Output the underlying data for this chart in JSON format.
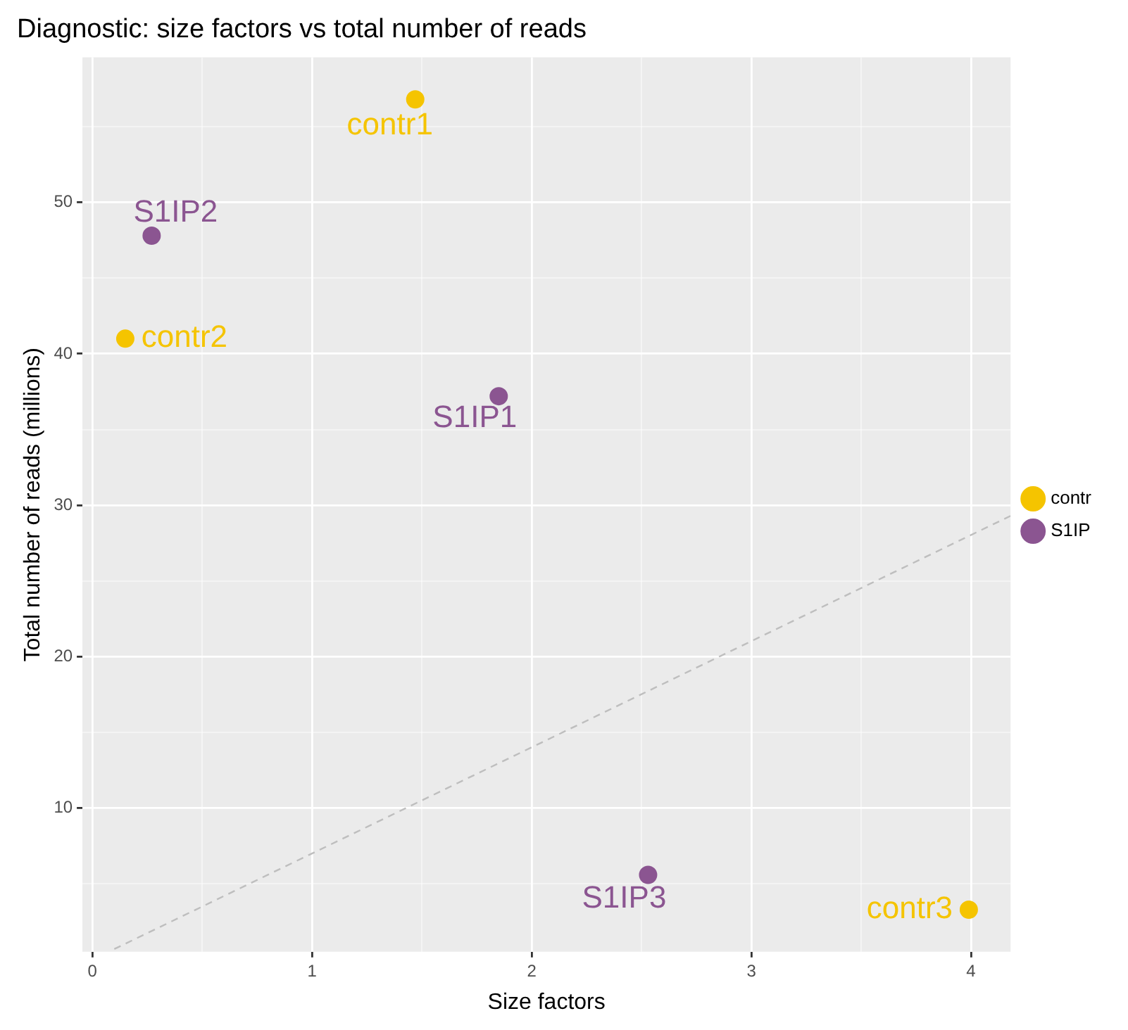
{
  "chart_data": {
    "type": "scatter",
    "title": "Diagnostic: size factors vs total number of reads",
    "xlabel": "Size factors",
    "ylabel": "Total number of reads (millions)",
    "series": [
      {
        "name": "contr",
        "color": "#f5c400",
        "x": [
          1.47,
          0.15,
          3.99
        ],
        "values": [
          56.8,
          41.0,
          3.3
        ]
      },
      {
        "name": "S1IP",
        "color": "#8b5591",
        "x": [
          0.27,
          1.85,
          2.53
        ],
        "values": [
          47.8,
          37.2,
          5.6
        ]
      },
      {
        "type": "line",
        "color": "#bebebe",
        "line_style": "dashed",
        "marker": "none",
        "x": [
          0.1,
          4.18
        ],
        "values": [
          0.7,
          29.3
        ]
      }
    ],
    "annotations": [
      {
        "text": "contr1",
        "x": 1.47,
        "y": 56.8
      },
      {
        "text": "S1IP2",
        "x": 0.27,
        "y": 47.8
      },
      {
        "text": "contr2",
        "x": 0.15,
        "y": 41.0
      },
      {
        "text": "S1IP1",
        "x": 1.85,
        "y": 37.2
      },
      {
        "text": "S1IP3",
        "x": 2.53,
        "y": 5.6
      },
      {
        "text": "contr3",
        "x": 3.99,
        "y": 3.3
      }
    ],
    "xlim": [
      -0.045,
      4.18
    ],
    "ylim": [
      0.52,
      59.57
    ],
    "xticks": [
      0,
      {
        "value": 0.5,
        "label": null
      },
      1,
      {
        "value": 1.5,
        "label": null
      },
      2,
      {
        "value": 2.5,
        "label": null
      },
      3,
      {
        "value": 3.5,
        "label": null
      },
      4
    ],
    "yticks": [
      {
        "value": 5,
        "label": null
      },
      10,
      {
        "value": 15,
        "label": null
      },
      20,
      {
        "value": 25,
        "label": null
      },
      30,
      {
        "value": 35,
        "label": null
      },
      40,
      {
        "value": 45,
        "label": null
      },
      50,
      {
        "value": 55,
        "label": null
      }
    ],
    "grid": true,
    "legend": "right",
    "marker": "circle"
  }
}
